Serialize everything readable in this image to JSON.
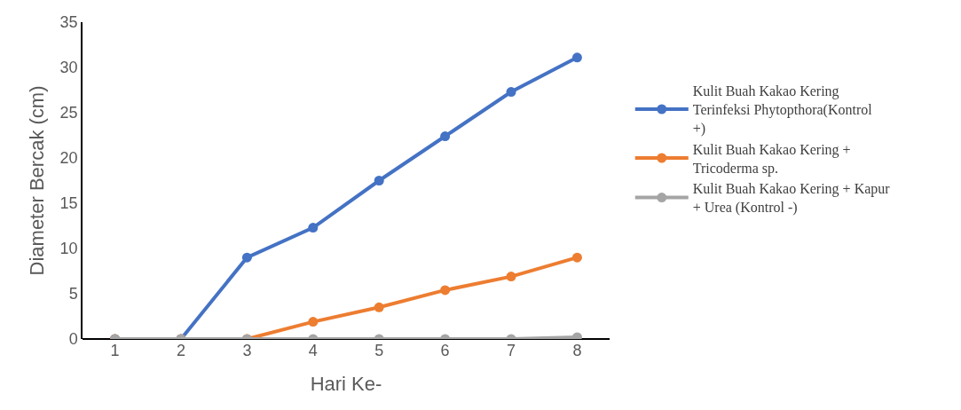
{
  "chart_data": {
    "type": "line",
    "xlabel": "Hari Ke-",
    "ylabel": "Diameter Bercak (cm)",
    "categories": [
      "1",
      "2",
      "3",
      "4",
      "5",
      "6",
      "7",
      "8"
    ],
    "ylim": [
      0,
      35
    ],
    "yticks": [
      0,
      5,
      10,
      15,
      20,
      25,
      30,
      35
    ],
    "grid": false,
    "legend": "right",
    "marker": "circle",
    "line_style": "solid",
    "series": [
      {
        "name": "Kulit Buah Kakao Kering Terinfeksi Phytopthora(Kontrol +)",
        "color": "#4472c4",
        "values": [
          0,
          0,
          9.0,
          12.3,
          17.5,
          22.4,
          27.3,
          31.1
        ]
      },
      {
        "name": "Kulit Buah Kakao Kering + Tricoderma sp.",
        "color": "#ed7d31",
        "values": [
          0,
          0,
          0,
          1.9,
          3.5,
          5.4,
          6.9,
          9.0
        ]
      },
      {
        "name": "Kulit Buah Kakao Kering + Kapur + Urea (Kontrol -)",
        "color": "#a5a5a5",
        "values": [
          0,
          0,
          0,
          0,
          0,
          0,
          0,
          0.2
        ]
      }
    ]
  }
}
